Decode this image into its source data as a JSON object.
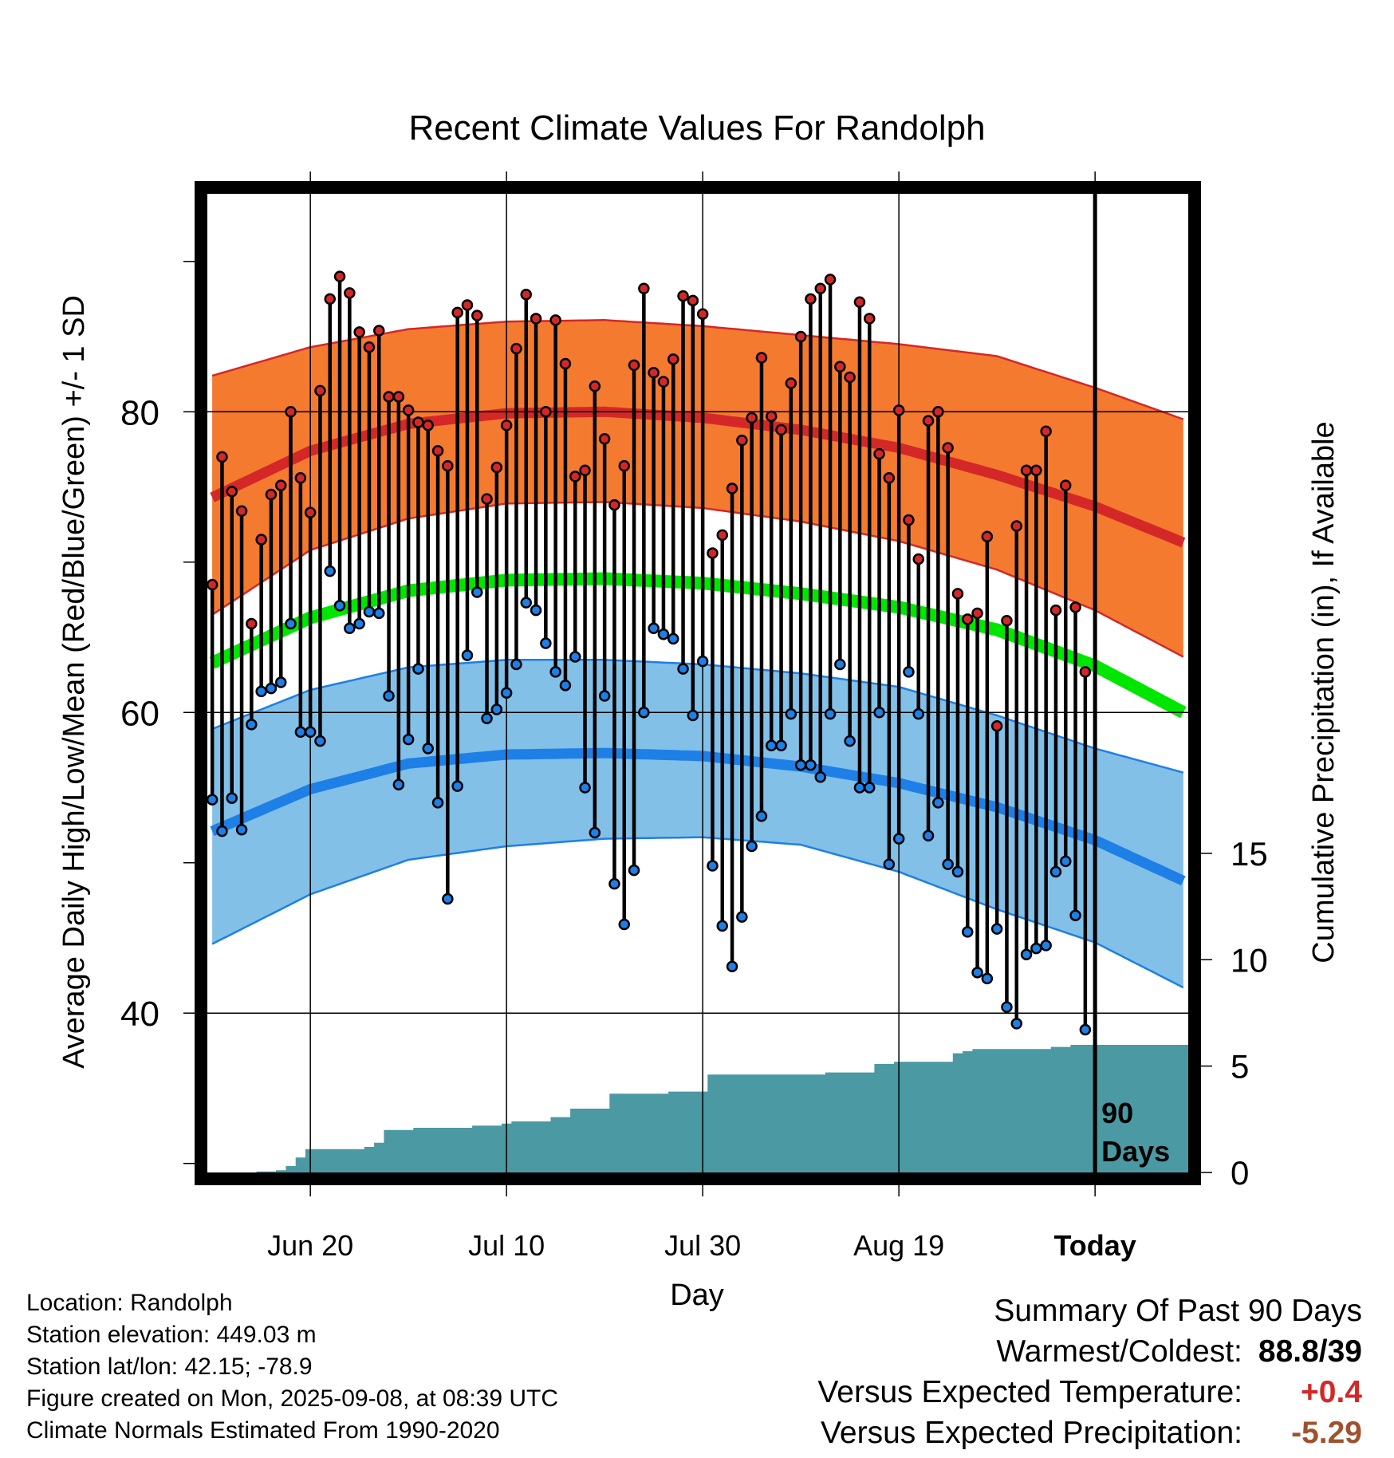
{
  "chart_data": {
    "type": "line",
    "title": "Recent Climate Values For Randolph",
    "xlabel": "Day",
    "ylabel_left": "Average Daily High/Low/Mean (Red/Blue/Green) +/- 1 SD",
    "ylabel_right": "Cumulative Precipitation (in), If Available",
    "x_ticks": [
      "Jun 20",
      "Jul 10",
      "Jul 30",
      "Aug 19",
      "Today"
    ],
    "x_tick_day_index": [
      10,
      30,
      50,
      70,
      90
    ],
    "x_range_days": [
      -0.5,
      99.5
    ],
    "today_index": 90,
    "today_annotation": [
      "90",
      "Days"
    ],
    "y_left_ticks": [
      40,
      60,
      80
    ],
    "y_left_range": [
      29.4,
      94.5
    ],
    "y_right_ticks": [
      0,
      5,
      10,
      15
    ],
    "y_right_range": [
      0,
      46
    ],
    "grid": true,
    "normals": {
      "day_index": [
        0,
        10,
        20,
        30,
        40,
        50,
        60,
        70,
        80,
        90,
        99
      ],
      "high_mean": [
        74.3,
        77.4,
        79.2,
        79.9,
        80.0,
        79.6,
        78.8,
        77.6,
        75.8,
        73.7,
        71.3
      ],
      "high_sd_upper": [
        82.4,
        84.3,
        85.5,
        86.0,
        86.1,
        85.7,
        85.1,
        84.5,
        83.7,
        81.6,
        79.5
      ],
      "high_sd_lower": [
        66.5,
        70.8,
        72.9,
        73.9,
        74.0,
        73.6,
        72.7,
        71.4,
        69.5,
        66.8,
        63.7
      ],
      "mean": [
        63.3,
        66.3,
        68.1,
        68.8,
        68.9,
        68.6,
        67.9,
        67.0,
        65.5,
        63.1,
        60.0
      ],
      "low_mean": [
        52.1,
        54.9,
        56.6,
        57.2,
        57.3,
        57.1,
        56.4,
        55.3,
        53.7,
        51.5,
        48.8
      ],
      "low_sd_upper": [
        58.9,
        61.5,
        63.0,
        63.5,
        63.5,
        63.2,
        62.6,
        61.7,
        59.8,
        57.6,
        56.0
      ],
      "low_sd_lower": [
        44.6,
        47.9,
        50.2,
        51.1,
        51.6,
        51.7,
        51.2,
        49.4,
        46.9,
        44.7,
        41.7
      ]
    },
    "series": [
      {
        "name": "High",
        "values": [
          68.5,
          77.0,
          74.7,
          73.4,
          65.9,
          71.5,
          74.5,
          75.1,
          80.0,
          75.6,
          73.3,
          81.4,
          87.5,
          89.0,
          87.9,
          85.3,
          84.3,
          85.4,
          81.0,
          81.0,
          80.1,
          79.3,
          79.1,
          77.4,
          76.4,
          86.6,
          87.1,
          86.4,
          74.2,
          76.3,
          79.1,
          84.2,
          87.8,
          86.2,
          80.0,
          86.1,
          83.2,
          75.7,
          76.1,
          81.7,
          78.2,
          73.8,
          76.4,
          83.1,
          88.2,
          82.6,
          82.0,
          83.5,
          87.7,
          87.4,
          86.5,
          70.6,
          71.8,
          74.9,
          78.1,
          79.6,
          83.6,
          79.7,
          78.8,
          81.9,
          85.0,
          87.5,
          88.2,
          88.8,
          83.0,
          82.3,
          87.3,
          86.2,
          77.2,
          75.6,
          80.1,
          72.8,
          70.2,
          79.4,
          80.0,
          77.6,
          67.9,
          66.2,
          66.6,
          71.7,
          59.1,
          66.1,
          72.4,
          76.1,
          76.1,
          78.7,
          66.8,
          75.1,
          67.0,
          62.7
        ],
        "color": "#d42828"
      },
      {
        "name": "Low",
        "values": [
          54.2,
          52.1,
          54.3,
          52.2,
          59.2,
          61.4,
          61.6,
          62.0,
          65.9,
          58.7,
          58.7,
          58.1,
          69.4,
          67.1,
          65.6,
          65.9,
          66.7,
          66.6,
          61.1,
          55.2,
          58.2,
          62.9,
          57.6,
          54.0,
          47.6,
          55.1,
          63.8,
          68.0,
          59.6,
          60.2,
          61.3,
          63.2,
          67.3,
          66.8,
          64.6,
          62.7,
          61.8,
          63.7,
          55.0,
          52.0,
          61.1,
          48.6,
          45.9,
          49.5,
          60.0,
          65.6,
          65.2,
          64.9,
          62.9,
          59.8,
          63.4,
          49.8,
          45.8,
          43.1,
          46.4,
          51.1,
          53.1,
          57.8,
          57.8,
          59.9,
          56.5,
          56.5,
          55.7,
          59.9,
          63.2,
          58.1,
          55.0,
          55.0,
          60.0,
          49.9,
          51.6,
          62.7,
          59.9,
          51.8,
          54.0,
          49.9,
          49.4,
          45.4,
          42.7,
          42.3,
          45.6,
          40.4,
          39.3,
          43.9,
          44.3,
          44.5,
          49.4,
          50.1,
          46.5,
          38.9
        ],
        "color": "#1e7fe6"
      },
      {
        "name": "Cumulative Precipitation",
        "values": [
          0.0,
          0.0,
          0.0,
          0.0,
          0.0,
          0.05,
          0.05,
          0.1,
          0.3,
          0.7,
          1.1,
          1.1,
          1.1,
          1.1,
          1.1,
          1.1,
          1.2,
          1.4,
          2.0,
          2.0,
          2.0,
          2.1,
          2.1,
          2.1,
          2.1,
          2.1,
          2.1,
          2.2,
          2.2,
          2.2,
          2.3,
          2.4,
          2.4,
          2.4,
          2.4,
          2.6,
          2.6,
          3.0,
          3.0,
          3.0,
          3.0,
          3.7,
          3.7,
          3.7,
          3.7,
          3.7,
          3.7,
          3.8,
          3.8,
          3.8,
          3.8,
          4.6,
          4.6,
          4.6,
          4.6,
          4.6,
          4.6,
          4.6,
          4.6,
          4.6,
          4.6,
          4.6,
          4.6,
          4.7,
          4.7,
          4.7,
          4.7,
          4.7,
          5.1,
          5.1,
          5.2,
          5.2,
          5.2,
          5.2,
          5.2,
          5.2,
          5.6,
          5.7,
          5.8,
          5.8,
          5.8,
          5.8,
          5.8,
          5.8,
          5.8,
          5.8,
          5.9,
          5.9,
          6.0,
          6.0,
          6.0,
          6.0,
          6.0,
          6.0,
          6.0,
          6.0,
          6.0,
          6.0,
          6.0,
          6.0
        ],
        "color": "#4a99a3"
      }
    ],
    "band_colors": {
      "high_band": "#f47a30",
      "high_line": "#d42828",
      "mean_line": "#00e600",
      "low_band": "#82c0e8",
      "low_line": "#1e7fe6"
    }
  },
  "info": {
    "location": "Location: Randolph",
    "elevation": "Station elevation: 449.03 m",
    "latlon": "Station lat/lon: 42.15; -78.9",
    "created": "Figure created on Mon, 2025-09-08, at 08:39 UTC",
    "normals": "Climate Normals Estimated From 1990-2020"
  },
  "summary": {
    "title": "Summary Of Past 90 Days",
    "warm_cold_label": "Warmest/Coldest:",
    "warm_cold_value": "88.8/39",
    "temp_label": "Versus Expected Temperature:",
    "temp_value": "+0.4",
    "temp_color": "#d42828",
    "precip_label": "Versus Expected Precipitation:",
    "precip_value": "-5.29",
    "precip_color": "#a0522d"
  }
}
